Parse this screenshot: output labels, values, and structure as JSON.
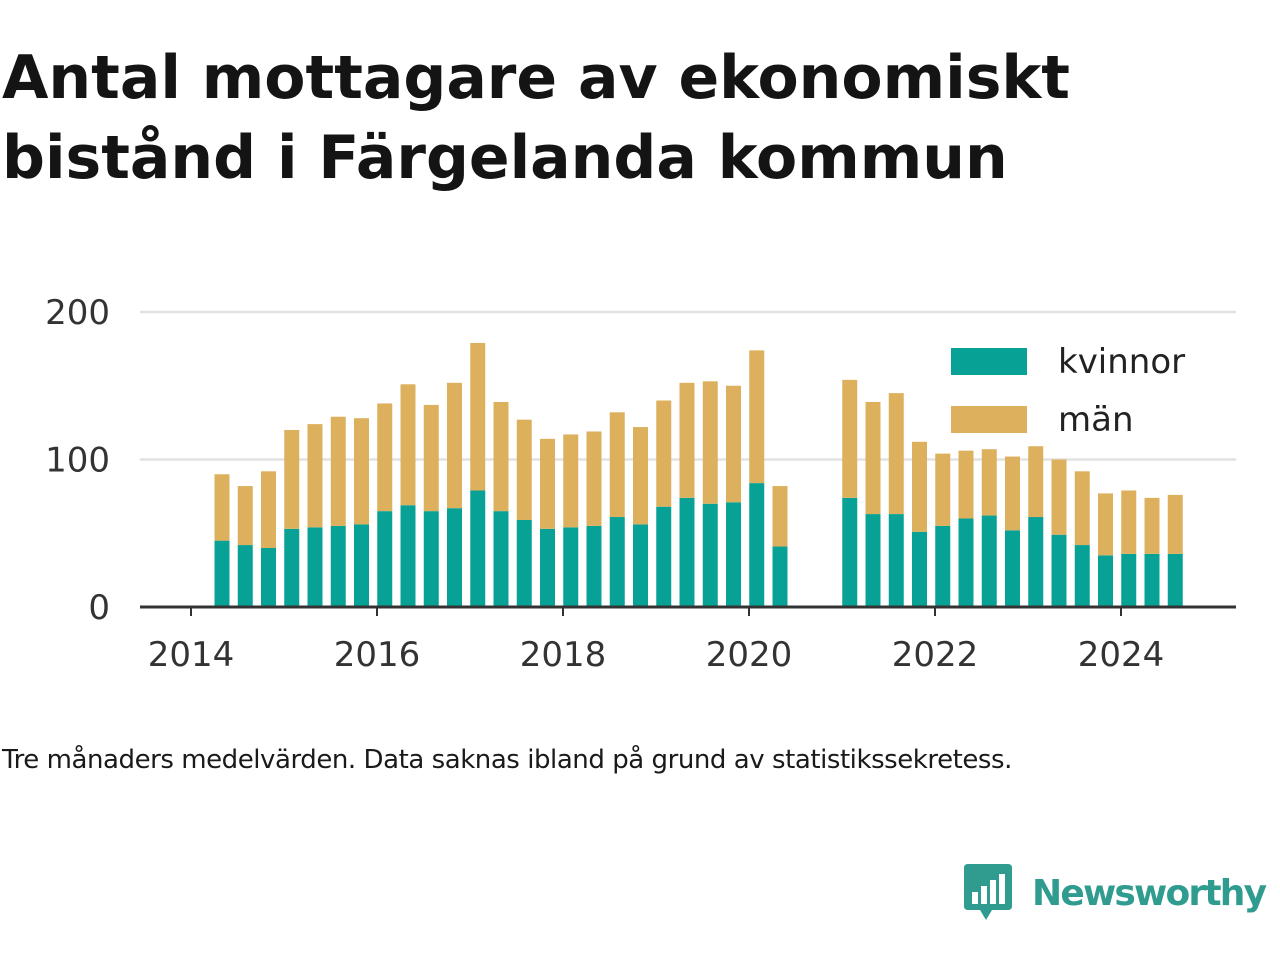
{
  "title_lines": [
    "Antal mottagare av ekonomiskt",
    "bistånd i Färgelanda kommun"
  ],
  "caption": "Tre månaders medelvärden. Data saknas ibland på grund av statistikssekretess.",
  "brand": {
    "name": "Newsworthy",
    "color": "#2f9c8f",
    "icon": "bar-chart-speech-bubble-icon"
  },
  "colors": {
    "kvinnor": "#08a195",
    "man": "#ddb05e",
    "grid": "#e2e2e2",
    "axis": "#333333"
  },
  "chart_data": {
    "type": "bar",
    "stacked": true,
    "grid": true,
    "legend_position": "top-right",
    "ylim": [
      0,
      200
    ],
    "yticks": [
      0,
      100,
      200
    ],
    "xticks": [
      "2014",
      "2016",
      "2018",
      "2020",
      "2022",
      "2024"
    ],
    "categories": [
      "2014-05",
      "2014-08",
      "2014-11",
      "2015-02",
      "2015-05",
      "2015-08",
      "2015-11",
      "2016-02",
      "2016-05",
      "2016-08",
      "2016-11",
      "2017-02",
      "2017-05",
      "2017-08",
      "2017-11",
      "2018-02",
      "2018-05",
      "2018-08",
      "2018-11",
      "2019-02",
      "2019-05",
      "2019-08",
      "2019-11",
      "2020-02",
      "2020-05",
      "2021-02",
      "2021-05",
      "2021-08",
      "2021-11",
      "2022-02",
      "2022-05",
      "2022-08",
      "2022-11",
      "2023-02",
      "2023-05",
      "2023-08",
      "2023-11",
      "2024-02",
      "2024-05",
      "2024-08"
    ],
    "series": [
      {
        "name": "kvinnor",
        "values": [
          45,
          42,
          40,
          53,
          54,
          55,
          56,
          65,
          69,
          65,
          67,
          79,
          65,
          59,
          53,
          54,
          55,
          61,
          56,
          68,
          74,
          70,
          71,
          84,
          41,
          74,
          63,
          63,
          51,
          55,
          60,
          62,
          52,
          61,
          49,
          42,
          35,
          36,
          36,
          36
        ]
      },
      {
        "name": "män",
        "values": [
          45,
          40,
          52,
          67,
          70,
          74,
          72,
          73,
          82,
          72,
          85,
          100,
          74,
          68,
          61,
          63,
          64,
          71,
          66,
          72,
          78,
          83,
          79,
          90,
          41,
          80,
          76,
          82,
          61,
          49,
          46,
          45,
          50,
          48,
          51,
          50,
          42,
          43,
          38,
          40
        ]
      }
    ]
  }
}
